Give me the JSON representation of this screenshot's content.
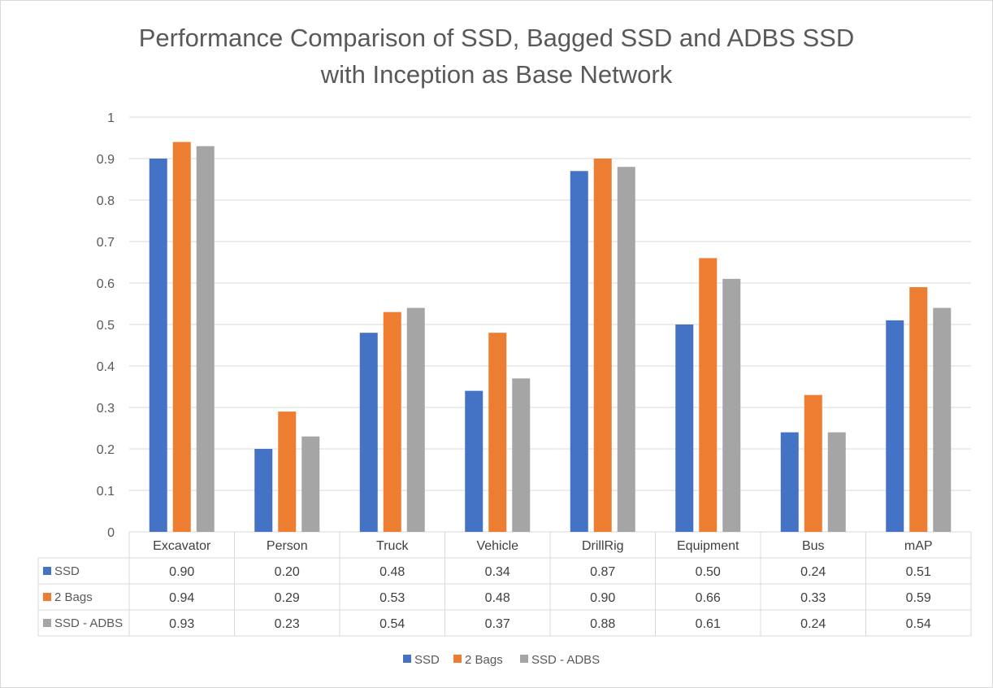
{
  "chart_data": {
    "type": "bar",
    "title": [
      "Performance Comparison of SSD, Bagged SSD and ADBS SSD",
      "with Inception as Base Network"
    ],
    "xlabel": "",
    "ylabel": "",
    "ylim": [
      0,
      1
    ],
    "yticks": [
      "0",
      "0.1",
      "0.2",
      "0.3",
      "0.4",
      "0.5",
      "0.6",
      "0.7",
      "0.8",
      "0.9",
      "1"
    ],
    "grid": true,
    "legend_position": "bottom",
    "categories": [
      "Excavator",
      "Person",
      "Truck",
      "Vehicle",
      "DrillRig",
      "Equipment",
      "Bus",
      "mAP"
    ],
    "series": [
      {
        "name": "SSD",
        "color": "#4472c4",
        "values": [
          0.9,
          0.2,
          0.48,
          0.34,
          0.87,
          0.5,
          0.24,
          0.51
        ],
        "labels": [
          "0.90",
          "0.20",
          "0.48",
          "0.34",
          "0.87",
          "0.50",
          "0.24",
          "0.51"
        ]
      },
      {
        "name": "2 Bags",
        "color": "#ed7d31",
        "values": [
          0.94,
          0.29,
          0.53,
          0.48,
          0.9,
          0.66,
          0.33,
          0.59
        ],
        "labels": [
          "0.94",
          "0.29",
          "0.53",
          "0.48",
          "0.90",
          "0.66",
          "0.33",
          "0.59"
        ]
      },
      {
        "name": "SSD - ADBS",
        "color": "#a5a5a5",
        "values": [
          0.93,
          0.23,
          0.54,
          0.37,
          0.88,
          0.61,
          0.24,
          0.54
        ],
        "labels": [
          "0.93",
          "0.23",
          "0.54",
          "0.37",
          "0.88",
          "0.61",
          "0.24",
          "0.54"
        ]
      }
    ]
  }
}
